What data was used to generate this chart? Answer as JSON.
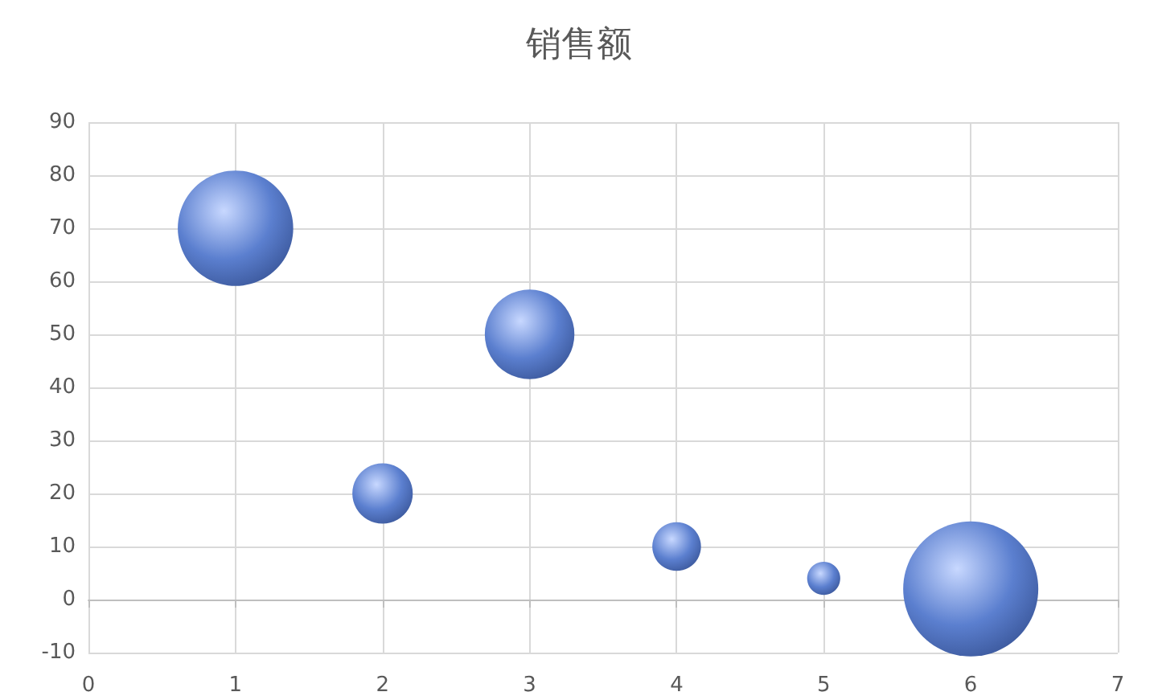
{
  "chart_data": {
    "type": "bubble",
    "title": "销售额",
    "x": [
      1,
      2,
      3,
      4,
      5,
      6
    ],
    "values": [
      70,
      20,
      50,
      10,
      4,
      2
    ],
    "sizes": [
      0.73,
      0.2,
      0.44,
      0.13,
      0.06,
      1
    ],
    "color": "#5b7fcf",
    "xlim": [
      0,
      7
    ],
    "xticks": [
      0,
      1,
      2,
      3,
      4,
      5,
      6,
      7
    ],
    "ylim": [
      -10,
      90
    ],
    "yticks": [
      -10,
      0,
      10,
      20,
      30,
      40,
      50,
      60,
      70,
      80,
      90
    ],
    "grid": true
  }
}
